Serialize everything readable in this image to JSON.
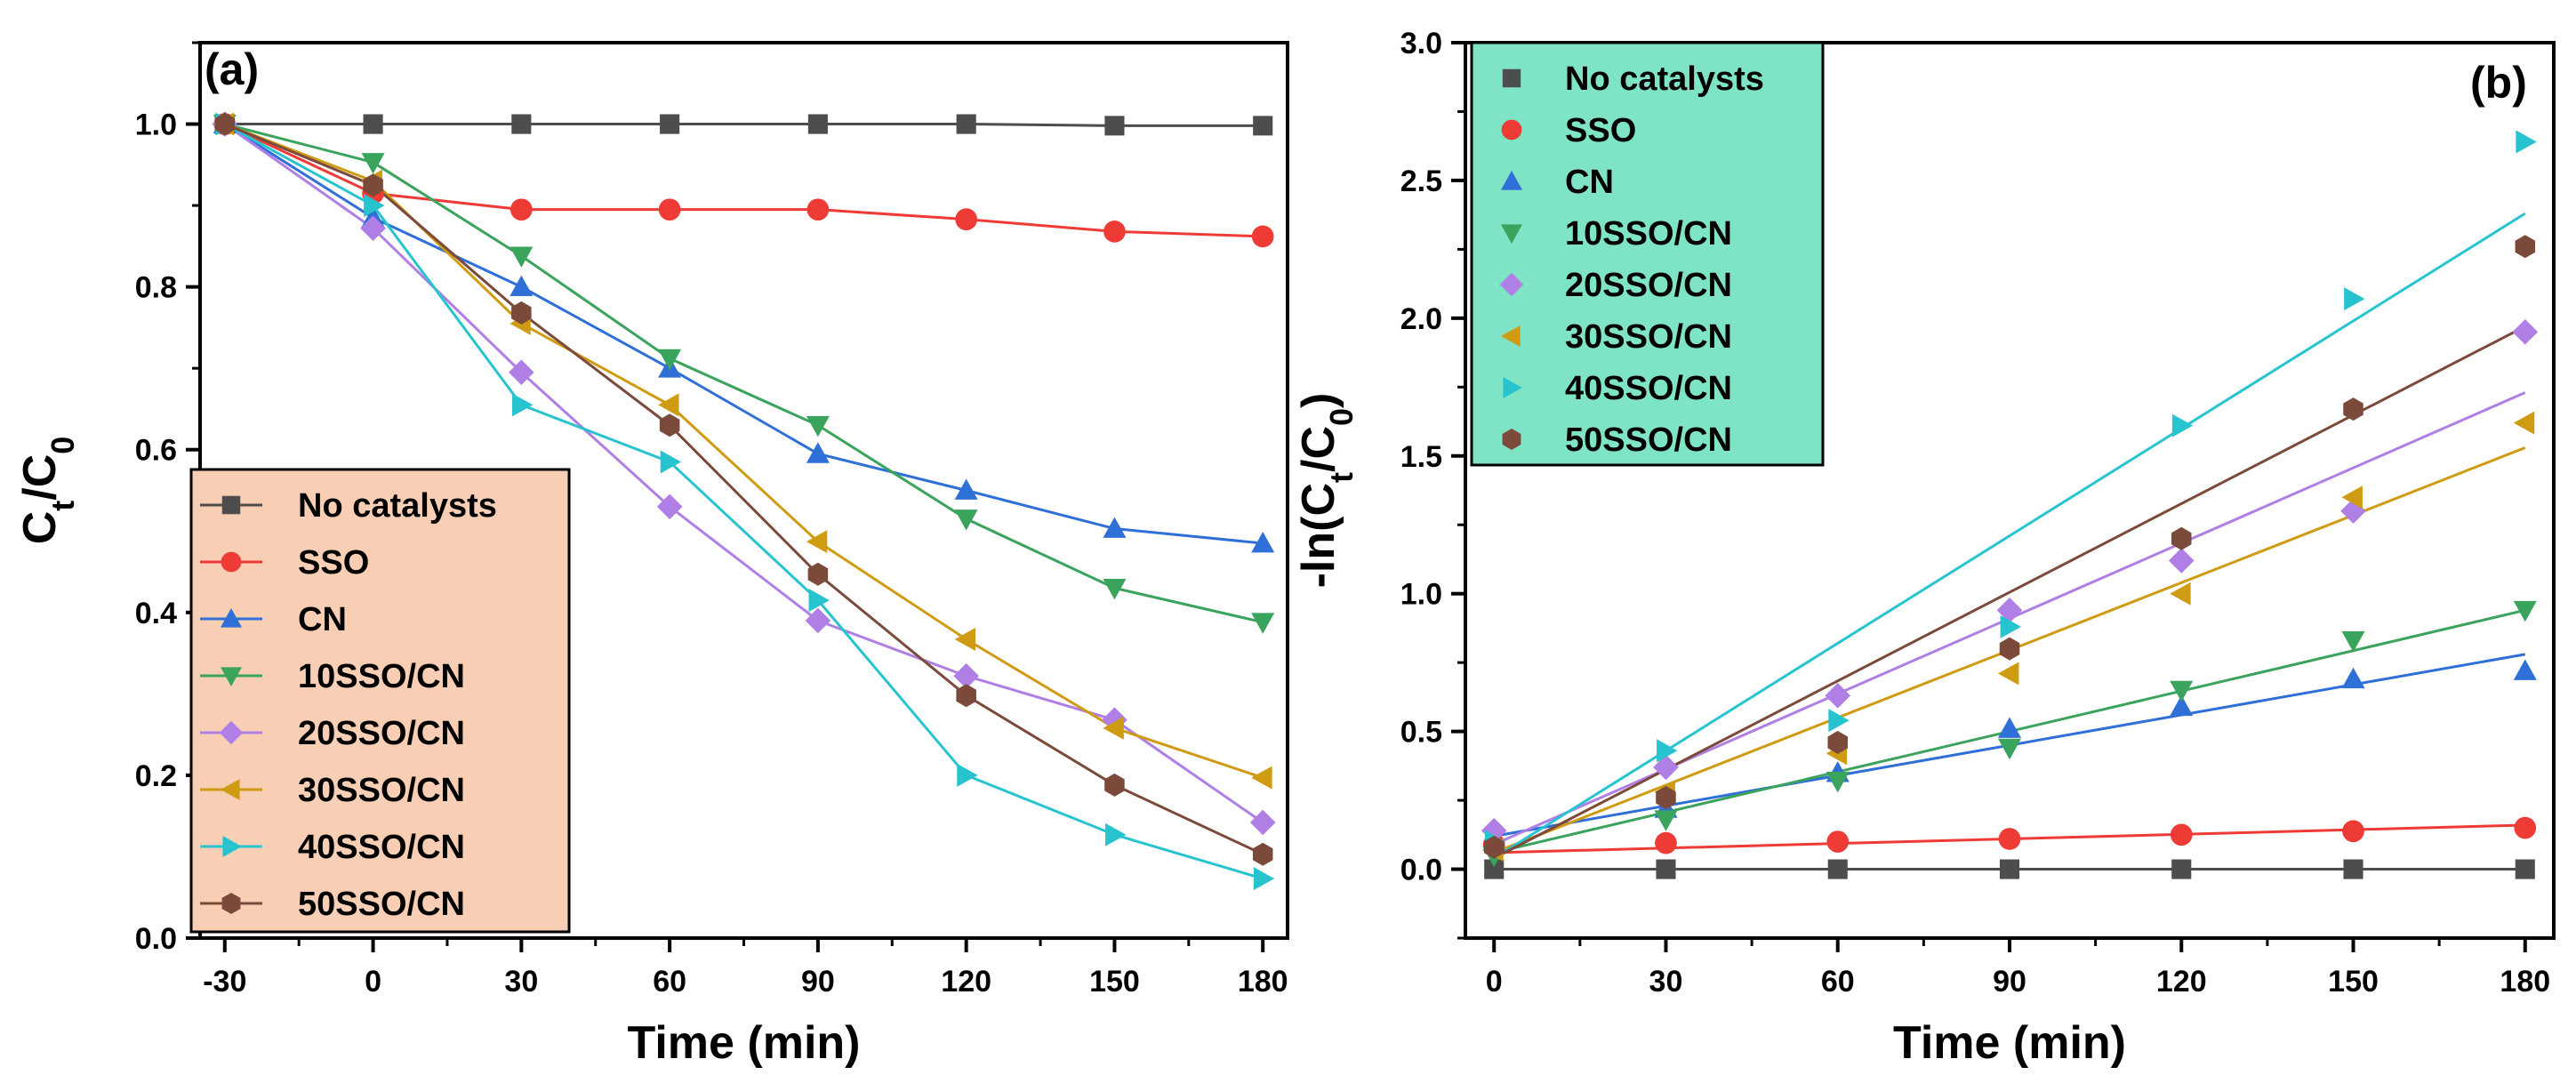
{
  "colors": {
    "no_catalysts": "#4d4d4d",
    "sso": "#ef3b36",
    "cn": "#2f6fd8",
    "sso10": "#3aa35c",
    "sso20": "#b07fe6",
    "sso30": "#cf9b12",
    "sso40": "#27c4cf",
    "sso50": "#7b4a3a",
    "legend_a_bg": "#f8cfb5",
    "legend_b_bg": "#7fe3c5"
  },
  "chart_data": [
    {
      "type": "line",
      "panel_label": "(a)",
      "title": "",
      "xlabel": "Time (min)",
      "ylabel": "Ct/C0",
      "ylabel_main": "C",
      "ylabel_sub1": "t",
      "ylabel_sep": "/C",
      "ylabel_sub2": "0",
      "xlim": [
        -35,
        185
      ],
      "ylim": [
        0.0,
        1.1
      ],
      "xticks": [
        -30,
        0,
        30,
        60,
        90,
        120,
        150,
        180
      ],
      "yticks": [
        0.0,
        0.2,
        0.4,
        0.6,
        0.8,
        1.0
      ],
      "x": [
        -30,
        0,
        30,
        60,
        90,
        120,
        150,
        180
      ],
      "legend_position": "bottom-left",
      "series": [
        {
          "name": "No catalysts",
          "marker": "square",
          "color": "#4d4d4d",
          "values": [
            1.0,
            1.0,
            1.0,
            1.0,
            1.0,
            1.0,
            0.998,
            0.998
          ]
        },
        {
          "name": "SSO",
          "marker": "circle",
          "color": "#ef3b36",
          "values": [
            1.0,
            0.915,
            0.895,
            0.895,
            0.895,
            0.883,
            0.868,
            0.862
          ]
        },
        {
          "name": "CN",
          "marker": "triangle-up",
          "color": "#2f6fd8",
          "values": [
            1.0,
            0.885,
            0.8,
            0.7,
            0.595,
            0.55,
            0.503,
            0.485
          ]
        },
        {
          "name": "10SSO/CN",
          "marker": "triangle-down",
          "color": "#3aa35c",
          "values": [
            1.0,
            0.953,
            0.838,
            0.712,
            0.63,
            0.515,
            0.43,
            0.388
          ]
        },
        {
          "name": "20SSO/CN",
          "marker": "diamond",
          "color": "#b07fe6",
          "values": [
            1.0,
            0.872,
            0.695,
            0.53,
            0.39,
            0.322,
            0.268,
            0.142
          ]
        },
        {
          "name": "30SSO/CN",
          "marker": "triangle-left",
          "color": "#cf9b12",
          "values": [
            1.0,
            0.93,
            0.755,
            0.655,
            0.487,
            0.367,
            0.258,
            0.197
          ]
        },
        {
          "name": "40SSO/CN",
          "marker": "triangle-right",
          "color": "#27c4cf",
          "values": [
            1.0,
            0.9,
            0.655,
            0.585,
            0.415,
            0.2,
            0.127,
            0.073
          ]
        },
        {
          "name": "50SSO/CN",
          "marker": "hexagon",
          "color": "#7b4a3a",
          "values": [
            1.0,
            0.925,
            0.768,
            0.63,
            0.447,
            0.298,
            0.188,
            0.103
          ]
        }
      ]
    },
    {
      "type": "scatter",
      "panel_label": "(b)",
      "title": "",
      "xlabel": "Time (min)",
      "ylabel": "-ln(Ct/C0)",
      "ylabel_main": "-ln(C",
      "ylabel_sub1": "t",
      "ylabel_sep": "/C",
      "ylabel_sub2": "0",
      "ylabel_end": ")",
      "xlim": [
        -5,
        185
      ],
      "ylim": [
        -0.25,
        3.0
      ],
      "xticks": [
        0,
        30,
        60,
        90,
        120,
        150,
        180
      ],
      "yticks": [
        0.0,
        0.5,
        1.0,
        1.5,
        2.0,
        2.5,
        3.0
      ],
      "x": [
        0,
        30,
        60,
        90,
        120,
        150,
        180
      ],
      "legend_position": "top-left",
      "series": [
        {
          "name": "No catalysts",
          "marker": "square",
          "color": "#4d4d4d",
          "values": [
            0.0,
            0.0,
            0.0,
            0.0,
            0.0,
            0.0,
            0.0
          ],
          "fit": [
            0.0,
            0.0
          ]
        },
        {
          "name": "SSO",
          "marker": "circle",
          "color": "#ef3b36",
          "values": [
            0.09,
            0.095,
            0.1,
            0.11,
            0.125,
            0.138,
            0.15
          ],
          "fit": [
            0.06,
            0.16
          ]
        },
        {
          "name": "CN",
          "marker": "triangle-up",
          "color": "#2f6fd8",
          "values": [
            0.1,
            0.22,
            0.35,
            0.51,
            0.59,
            0.69,
            0.72
          ],
          "fit": [
            0.12,
            0.78
          ]
        },
        {
          "name": "10SSO/CN",
          "marker": "triangle-down",
          "color": "#3aa35c",
          "values": [
            0.05,
            0.18,
            0.32,
            0.44,
            0.65,
            0.83,
            0.94
          ],
          "fit": [
            0.06,
            0.94
          ]
        },
        {
          "name": "20SSO/CN",
          "marker": "diamond",
          "color": "#b07fe6",
          "values": [
            0.14,
            0.37,
            0.63,
            0.94,
            1.12,
            1.3,
            1.95
          ],
          "fit": [
            0.09,
            1.73
          ]
        },
        {
          "name": "30SSO/CN",
          "marker": "triangle-left",
          "color": "#cf9b12",
          "values": [
            0.07,
            0.28,
            0.42,
            0.71,
            1.0,
            1.35,
            1.62
          ],
          "fit": [
            0.06,
            1.53
          ]
        },
        {
          "name": "40SSO/CN",
          "marker": "triangle-right",
          "color": "#27c4cf",
          "values": [
            0.1,
            0.43,
            0.54,
            0.88,
            1.61,
            2.07,
            2.64
          ],
          "fit": [
            0.04,
            2.38
          ]
        },
        {
          "name": "50SSO/CN",
          "marker": "hexagon",
          "color": "#7b4a3a",
          "values": [
            0.08,
            0.26,
            0.46,
            0.8,
            1.2,
            1.67,
            2.26
          ],
          "fit": [
            0.04,
            1.97
          ]
        }
      ]
    }
  ]
}
